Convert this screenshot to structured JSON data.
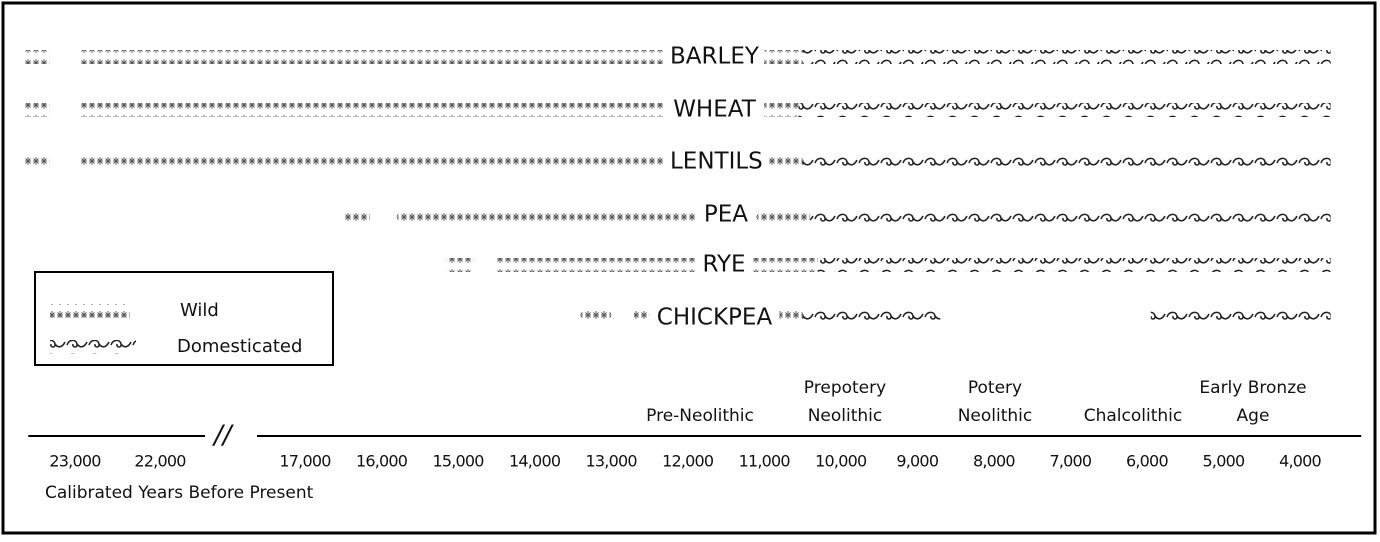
{
  "chart_data": {
    "type": "timeline",
    "xlabel": "Calibrated Years Before Present",
    "xlim": [
      23550,
      3200
    ],
    "xticks": [
      {
        "value": 23000,
        "label": "23,000"
      },
      {
        "value": 22000,
        "label": "22,000"
      },
      {
        "value": 17000,
        "label": "17,000"
      },
      {
        "value": 16000,
        "label": "16,000"
      },
      {
        "value": 15000,
        "label": "15,000"
      },
      {
        "value": 14000,
        "label": "14,000"
      },
      {
        "value": 13000,
        "label": "13,000"
      },
      {
        "value": 12000,
        "label": "12,000"
      },
      {
        "value": 11000,
        "label": "11,000"
      },
      {
        "value": 10000,
        "label": "10,000"
      },
      {
        "value": 9000,
        "label": "9,000"
      },
      {
        "value": 8000,
        "label": "8,000"
      },
      {
        "value": 7000,
        "label": "7,000"
      },
      {
        "value": 6000,
        "label": "6,000"
      },
      {
        "value": 5000,
        "label": "5,000"
      },
      {
        "value": 4000,
        "label": "4,000"
      }
    ],
    "periods": [
      [
        "Pre-Neolithic"
      ],
      [
        "Prepotery",
        "Neolithic"
      ],
      [
        "Potery",
        "Neolithic"
      ],
      [
        "Chalcolithic"
      ],
      [
        "Early Bronze",
        "Age"
      ]
    ],
    "legend": {
      "wild": "Wild",
      "domesticated": "Domesticated"
    },
    "crops": [
      {
        "name": "BARLEY",
        "wild": [
          [
            23600,
            23300
          ],
          [
            22950,
            12300
          ],
          [
            11000,
            10500
          ]
        ],
        "domesticated": [
          [
            10500,
            3600
          ]
        ]
      },
      {
        "name": "WHEAT",
        "wild": [
          [
            23600,
            23300
          ],
          [
            22950,
            12300
          ],
          [
            11000,
            10550
          ]
        ],
        "domesticated": [
          [
            10550,
            3600
          ]
        ]
      },
      {
        "name": "LENTILS",
        "wild": [
          [
            23600,
            23300
          ],
          [
            22950,
            12300
          ],
          [
            10950,
            10500
          ]
        ],
        "domesticated": [
          [
            10500,
            3600
          ]
        ]
      },
      {
        "name": "PEA",
        "wild": [
          [
            16500,
            16150
          ],
          [
            15800,
            11900
          ],
          [
            11100,
            10400
          ]
        ],
        "domesticated": [
          [
            10400,
            3600
          ]
        ]
      },
      {
        "name": "RYE",
        "wild": [
          [
            15150,
            14800
          ],
          [
            14500,
            11900
          ],
          [
            11150,
            10300
          ]
        ],
        "domesticated": [
          [
            10300,
            3600
          ]
        ]
      },
      {
        "name": "CHICKPEA",
        "wild": [
          [
            13400,
            13000
          ],
          [
            12700,
            12500
          ],
          [
            10800,
            10500
          ]
        ],
        "domesticated": [
          [
            10500,
            8700
          ],
          [
            5950,
            3600
          ]
        ]
      }
    ]
  }
}
